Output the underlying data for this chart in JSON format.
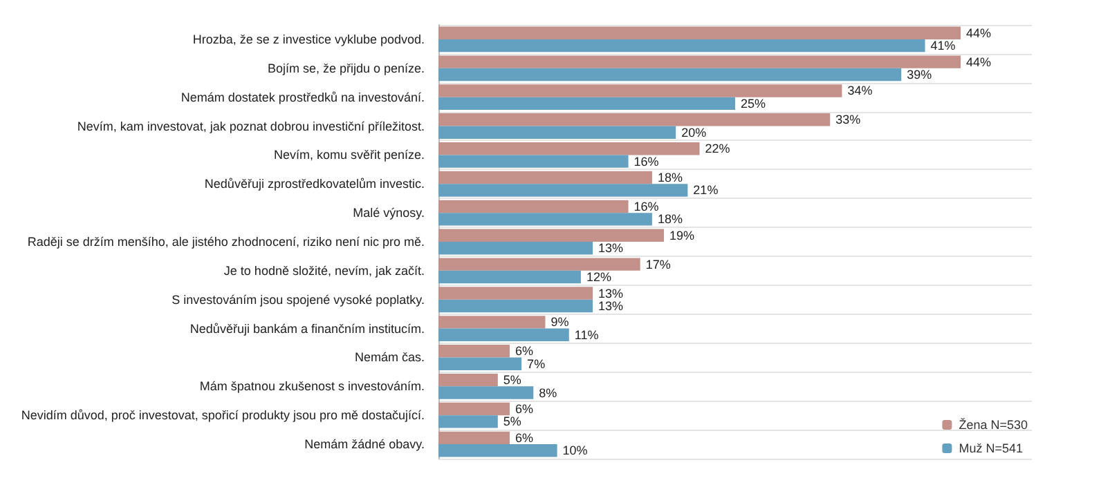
{
  "chart_data": {
    "type": "bar",
    "orientation": "horizontal",
    "categories": [
      "Hrozba, že se z investice vyklube podvod.",
      "Bojím se, že přijdu o peníze.",
      "Nemám dostatek prostředků na investování.",
      "Nevím, kam investovat, jak poznat dobrou investiční příležitost.",
      "Nevím, komu svěřit peníze.",
      "Nedůvěřuji zprostředkovatelům investic.",
      "Malé výnosy.",
      "Raději se držím menšího, ale jistého zhodnocení, riziko není nic pro mě.",
      "Je to hodně složité, nevím, jak začít.",
      "S investováním jsou spojené vysoké poplatky.",
      "Nedůvěřuji bankám a finančním institucím.",
      "Nemám čas.",
      "Mám špatnou zkušenost s investováním.",
      "Nevidím důvod, proč investovat, spořicí produkty jsou pro mě dostačující.",
      "Nemám žádné obavy."
    ],
    "series": [
      {
        "name": "Žena N=530",
        "color": "#c4908a",
        "values": [
          44,
          44,
          34,
          33,
          22,
          18,
          16,
          19,
          17,
          13,
          9,
          6,
          5,
          6,
          6
        ],
        "value_labels": [
          "44%",
          "44%",
          "34%",
          "33%",
          "22%",
          "18%",
          "16%",
          "19%",
          "17%",
          "13%",
          "9%",
          "6%",
          "5%",
          "6%",
          "6%"
        ]
      },
      {
        "name": "Muž N=541",
        "color": "#64a0c0",
        "values": [
          41,
          39,
          25,
          20,
          16,
          21,
          18,
          13,
          12,
          13,
          11,
          7,
          8,
          5,
          10
        ],
        "value_labels": [
          "41%",
          "39%",
          "25%",
          "20%",
          "16%",
          "21%",
          "18%",
          "13%",
          "12%",
          "13%",
          "11%",
          "7%",
          "8%",
          "5%",
          "10%"
        ]
      }
    ],
    "legend": "bottom right",
    "grid": "y"
  }
}
